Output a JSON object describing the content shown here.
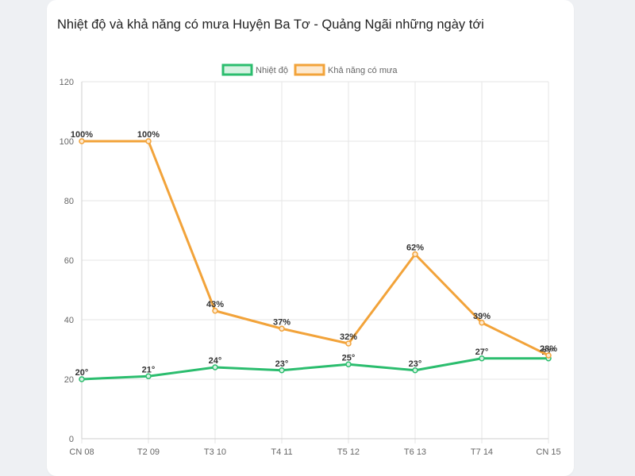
{
  "card": {
    "title": "Nhiệt độ và khả năng có mưa Huyện Ba Tơ - Quảng Ngãi những ngày tới"
  },
  "chart_data": {
    "type": "line",
    "title": "Nhiệt độ và khả năng có mưa Huyện Ba Tơ - Quảng Ngãi những ngày tới",
    "xlabel": "",
    "ylabel": "",
    "ylim": [
      0,
      120
    ],
    "yticks": [
      0,
      20,
      40,
      60,
      80,
      100,
      120
    ],
    "grid": true,
    "legend": "top-center",
    "categories": [
      "CN 08",
      "T2 09",
      "T3 10",
      "T4 11",
      "T5 12",
      "T6 13",
      "T7 14",
      "CN 15"
    ],
    "series": [
      {
        "name": "Nhiệt độ",
        "color": "#2bbd6e",
        "fill": "#d5f2e1",
        "values": [
          20,
          21,
          24,
          23,
          25,
          23,
          27,
          27
        ],
        "labels": [
          "20°",
          "21°",
          "24°",
          "23°",
          "25°",
          "23°",
          "27°",
          "27°"
        ]
      },
      {
        "name": "Khả năng có mưa",
        "color": "#f2a33a",
        "fill": "#fde9cf",
        "values": [
          100,
          100,
          43,
          37,
          32,
          62,
          39,
          28
        ],
        "labels": [
          "100%",
          "100%",
          "43%",
          "37%",
          "32%",
          "62%",
          "39%",
          "28%"
        ]
      }
    ]
  }
}
